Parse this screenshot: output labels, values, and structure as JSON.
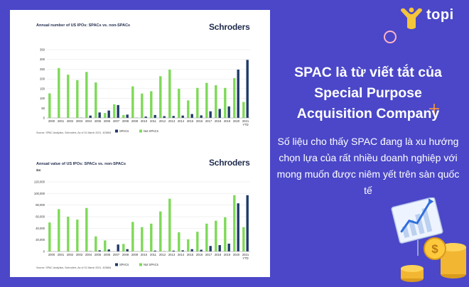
{
  "brand": {
    "name": "topi"
  },
  "headline": "SPAC là từ viết tắt của Special Purpose Acquisition Company",
  "body_text": "Số liệu cho thấy SPAC đang là xu hướng chọn lựa của rất nhiều doanh nghiệp với mong muốn được niêm yết trên sàn quốc tế",
  "colors": {
    "background": "#4b47c8",
    "spac": "#1f3a68",
    "non_spac": "#7ed957",
    "accent": "#f2c14e"
  },
  "icons": [
    "topi-logo-icon",
    "ring-icon",
    "plus-icon",
    "chart-board-icon",
    "coin-stack-icon",
    "dollar-coin-icon"
  ],
  "chart_data": [
    {
      "type": "bar",
      "title": "Annual number of US IPOs: SPACs vs. non-SPACs",
      "publisher": "Schroders",
      "source": "Source: SPAC Analytics, Schroders, As of 31 March 2021. 403884",
      "categories": [
        "2000",
        "2001",
        "2002",
        "2003",
        "2004",
        "2005",
        "2006",
        "2007",
        "2008",
        "2009",
        "2010",
        "2011",
        "2012",
        "2013",
        "2014",
        "2015",
        "2016",
        "2017",
        "2018",
        "2019",
        "2020",
        "2021 YTD"
      ],
      "series": [
        {
          "name": "SPACs",
          "values": [
            0,
            0,
            0,
            1,
            12,
            28,
            38,
            66,
            17,
            1,
            7,
            15,
            9,
            10,
            12,
            20,
            13,
            34,
            46,
            59,
            248,
            298
          ]
        },
        {
          "name": "Not SPACs",
          "values": [
            126,
            256,
            222,
            194,
            236,
            182,
            25,
            70,
            15,
            162,
            125,
            137,
            214,
            248,
            150,
            90,
            154,
            180,
            168,
            154,
            204,
            82
          ]
        }
      ],
      "yticks": [
        0,
        50,
        100,
        150,
        200,
        250,
        300,
        350
      ],
      "ylim": [
        0,
        350
      ],
      "legend": "bottom"
    },
    {
      "type": "bar",
      "title": "Annual value of US IPOs: SPACs vs. non-SPACs",
      "publisher": "Schroders",
      "source": "Source: SPAC Analytics, Schroders, As of 31 March 2021. 403884",
      "ylabel": "$m",
      "categories": [
        "2000",
        "2001",
        "2002",
        "2003",
        "2004",
        "2005",
        "2006",
        "2007",
        "2008",
        "2009",
        "2010",
        "2011",
        "2012",
        "2013",
        "2014",
        "2015",
        "2016",
        "2017",
        "2018",
        "2019",
        "2020",
        "2021 YTD"
      ],
      "series": [
        {
          "name": "SPACs",
          "values": [
            0,
            0,
            0,
            0,
            500,
            2000,
            3500,
            12000,
            4000,
            100,
            500,
            1500,
            500,
            1500,
            2000,
            4000,
            3000,
            9500,
            11000,
            13500,
            83000,
            97000
          ]
        },
        {
          "name": "Not SPACs",
          "values": [
            50000,
            73000,
            60000,
            55000,
            75000,
            26000,
            19000,
            0,
            13000,
            51000,
            42000,
            48000,
            69000,
            91000,
            33000,
            21000,
            34000,
            48000,
            53000,
            59000,
            97000,
            42000
          ]
        }
      ],
      "yticks": [
        "0",
        "20,000",
        "40,000",
        "60,000",
        "80,000",
        "100,000",
        "120,000"
      ],
      "ylim": [
        0,
        120000
      ],
      "legend": "bottom"
    }
  ]
}
